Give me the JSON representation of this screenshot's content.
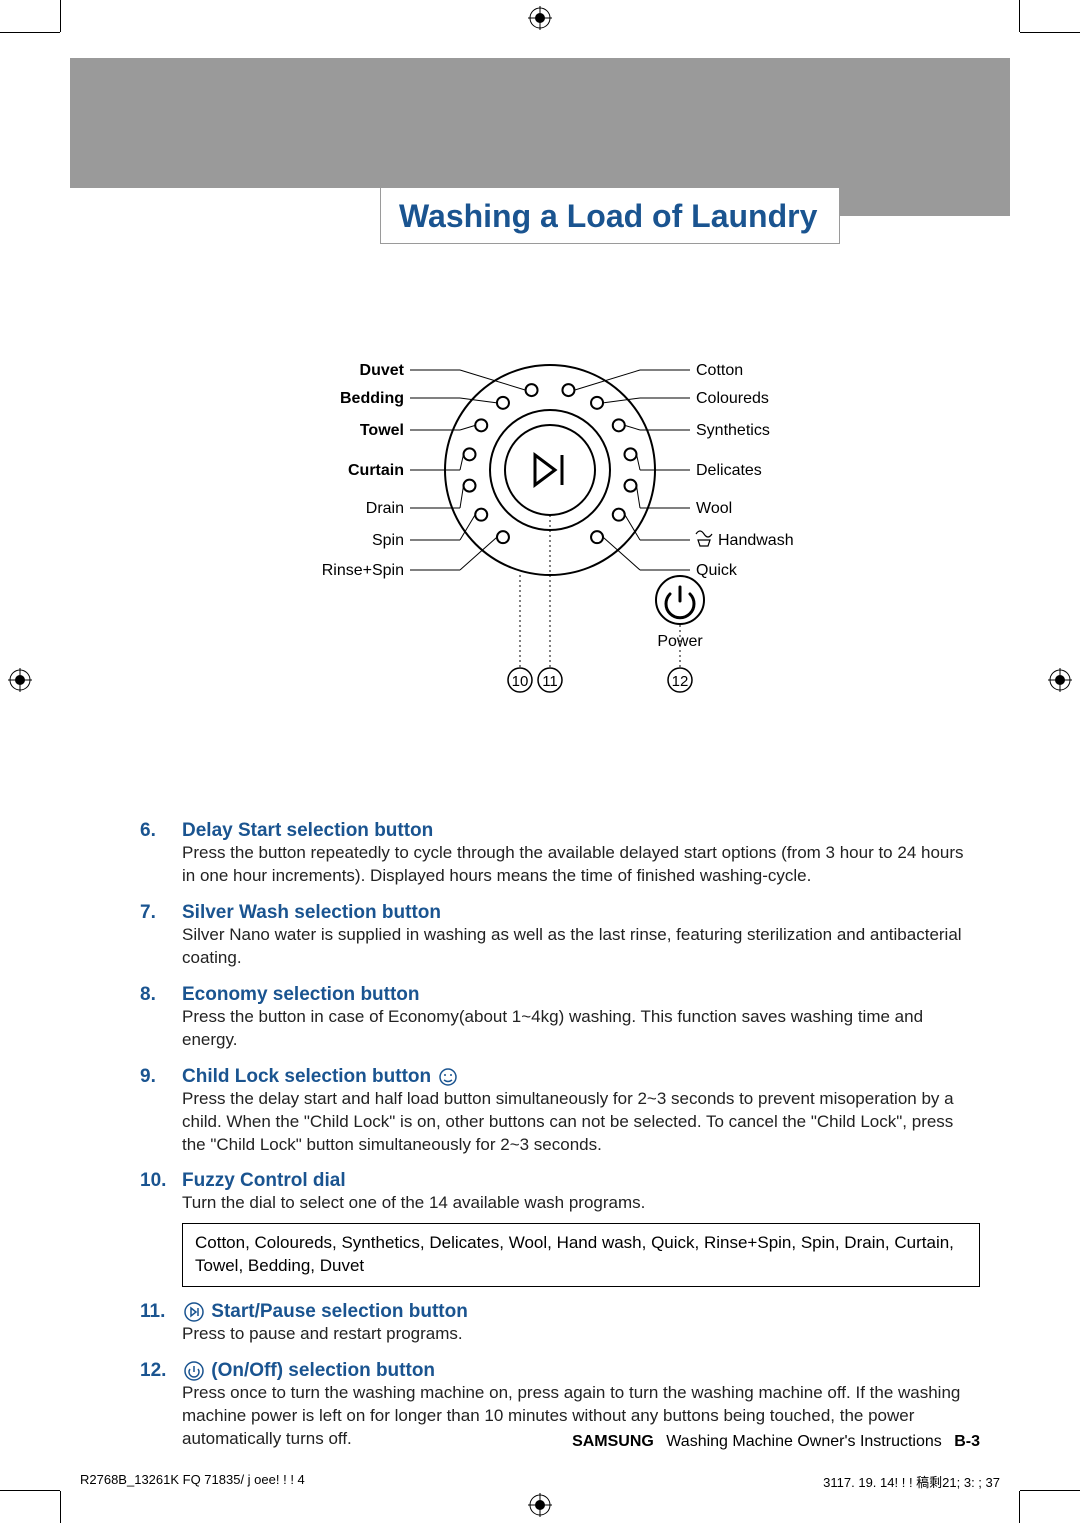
{
  "colors": {
    "accent": "#1a5490",
    "band": "#9a9a9a",
    "text": "#000000",
    "bg": "#ffffff"
  },
  "header": {
    "title": "Washing a Load of Laundry"
  },
  "dial": {
    "center_icon": "start-pause",
    "left_labels": [
      {
        "text": "Duvet",
        "bold": true
      },
      {
        "text": "Bedding",
        "bold": true
      },
      {
        "text": "Towel",
        "bold": true
      },
      {
        "text": "Curtain",
        "bold": true
      },
      {
        "text": "Drain",
        "bold": false
      },
      {
        "text": "Spin",
        "bold": false
      },
      {
        "text": "Rinse+Spin",
        "bold": false
      }
    ],
    "right_labels": [
      {
        "text": "Cotton",
        "bold": false
      },
      {
        "text": "Coloureds",
        "bold": false
      },
      {
        "text": "Synthetics",
        "bold": false
      },
      {
        "text": "Delicates",
        "bold": false
      },
      {
        "text": "Wool",
        "bold": false
      },
      {
        "text": "Handwash",
        "bold": false,
        "icon": "handwash"
      },
      {
        "text": "Quick",
        "bold": false
      }
    ],
    "power_label": "Power",
    "callout_10": "10",
    "callout_11": "11",
    "callout_12": "12"
  },
  "items": [
    {
      "num": "6.",
      "title": "Delay Start selection button",
      "body": "Press the button repeatedly to cycle through the available delayed start options (from 3 hour to 24 hours in one hour increments).\nDisplayed hours means the time of finished washing-cycle."
    },
    {
      "num": "7.",
      "title": "Silver Wash selection button",
      "body": "Silver Nano water is supplied in washing as well as the last rinse, featuring sterilization and antibacterial coating."
    },
    {
      "num": "8.",
      "title": "Economy selection button",
      "body": "Press the button in case of Economy(about 1~4kg) washing. This function saves washing time and energy."
    },
    {
      "num": "9.",
      "title": "Child Lock selection button",
      "title_icon": "child-lock",
      "body": "Press the delay start and half load button simultaneously for 2~3 seconds to prevent misoperation by a child. When the \"Child Lock\" is on, other buttons can not be selected. To cancel the \"Child Lock\", press the \"Child Lock\" button simultaneously for 2~3 seconds."
    },
    {
      "num": "10.",
      "title": "Fuzzy Control dial",
      "body": "Turn the dial to select one of the 14 available wash programs.",
      "box": "Cotton, Coloureds, Synthetics, Delicates, Wool, Hand wash, Quick, Rinse+Spin, Spin, Drain, Curtain, Towel, Bedding, Duvet"
    },
    {
      "num": "11.",
      "title_icon": "start-pause-circle",
      "title": "Start/Pause selection button",
      "body": "Press to pause and restart programs."
    },
    {
      "num": "12.",
      "title_icon": "power-circle",
      "title": "(On/Off) selection button",
      "body": "Press once to turn the washing machine on, press again to turn the washing machine off. If the washing machine power is left on for longer than 10 minutes without any buttons being touched, the power automatically turns off."
    }
  ],
  "footer": {
    "brand": "SAMSUNG",
    "doc": "Washing Machine Owner's Instructions",
    "page": "B-3"
  },
  "imposition": {
    "left": "R2768B_13261K FQ 71835/ j oee! ! ! 4",
    "right": "3117. 19. 14! ! ! 稿剩21; 3: ; 37"
  }
}
